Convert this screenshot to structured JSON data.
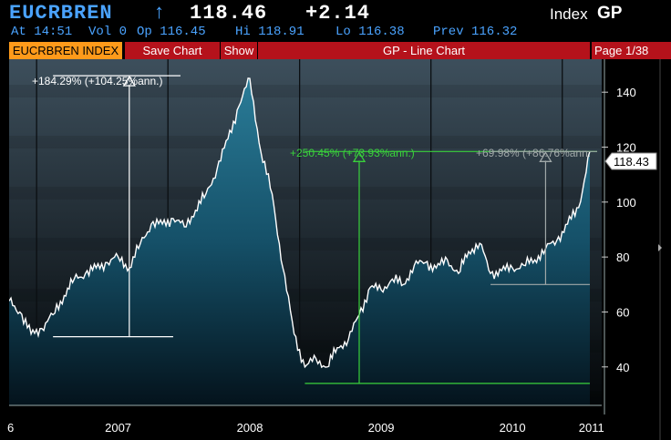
{
  "header": {
    "ticker": "EUCRBREN",
    "arrow": "↑",
    "last": "118.46",
    "change": "+2.14",
    "index_label": "Index",
    "function_code": "GP",
    "line2": {
      "time": "At 14:51",
      "vol": "Vol 0",
      "open": "Op 116.45",
      "high": "Hi 118.91",
      "low": "Lo 116.38",
      "prev": "Prev 116.32"
    }
  },
  "toolbar": {
    "index_tab": "EUCRBREN INDEX",
    "save_chart": "Save Chart",
    "show": "Show",
    "title": "GP - Line Chart",
    "page": "Page 1/38"
  },
  "annotations": {
    "a1": "+184.29% (+104.25%ann.)",
    "a2": "+250.45% (+73.93%ann.)",
    "a3": "+69.98% (+86.76%ann."
  },
  "colors": {
    "accent_blue": "#4aa3ff",
    "tab_orange": "#ff9a1a",
    "tab_red": "#b5121b",
    "green": "#39d13b",
    "white_line": "#ffffff"
  },
  "chart_data": {
    "type": "area",
    "ylim": [
      26,
      152
    ],
    "y_ticks": [
      "140",
      "120",
      "100",
      "80",
      "60",
      "40"
    ],
    "x_labels": [
      "6",
      "2007",
      "2008",
      "2009",
      "2010",
      "2011"
    ],
    "last_value_label": "118.43",
    "series": [
      {
        "x": [
          "2006-09",
          "2006-10",
          "2006-11",
          "2006-12",
          "2007-01",
          "2007-02",
          "2007-03",
          "2007-04",
          "2007-05",
          "2007-06",
          "2007-07",
          "2007-08",
          "2007-09",
          "2007-10",
          "2007-11",
          "2007-12",
          "2008-01",
          "2008-02",
          "2008-03",
          "2008-04",
          "2008-05",
          "2008-06",
          "2008-07",
          "2008-08",
          "2008-09",
          "2008-10",
          "2008-11",
          "2008-12",
          "2009-01",
          "2009-02",
          "2009-03",
          "2009-04",
          "2009-05",
          "2009-06",
          "2009-07",
          "2009-08",
          "2009-09",
          "2009-10",
          "2009-11",
          "2009-12",
          "2010-01",
          "2010-02",
          "2010-03",
          "2010-04",
          "2010-05",
          "2010-06",
          "2010-07",
          "2010-08",
          "2010-09",
          "2010-10",
          "2010-11",
          "2010-12",
          "2011-01",
          "2011-02"
        ],
        "values": [
          64,
          60,
          52,
          54,
          59,
          66,
          72,
          74,
          76,
          78,
          80,
          76,
          85,
          92,
          92,
          94,
          91,
          97,
          103,
          112,
          123,
          135,
          145,
          118,
          103,
          76,
          52,
          40,
          43,
          40,
          47,
          50,
          59,
          69,
          68,
          72,
          70,
          77,
          78,
          76,
          79,
          74,
          82,
          85,
          74,
          75,
          76,
          77,
          79,
          83,
          86,
          92,
          98,
          118.43
        ]
      }
    ],
    "reference_lines": [
      {
        "from_date": "2007-01",
        "base": 51,
        "peak": 146,
        "label": "+184.29% (+104.25%ann.)"
      },
      {
        "from_date": "2008-12",
        "base": 34,
        "peak": 118.4,
        "label": "+250.45% (+73.93%ann.)"
      },
      {
        "from_date": "2010-05",
        "base": 70,
        "peak": 118.4,
        "label": "+69.98% (+86.76%ann."
      }
    ]
  }
}
